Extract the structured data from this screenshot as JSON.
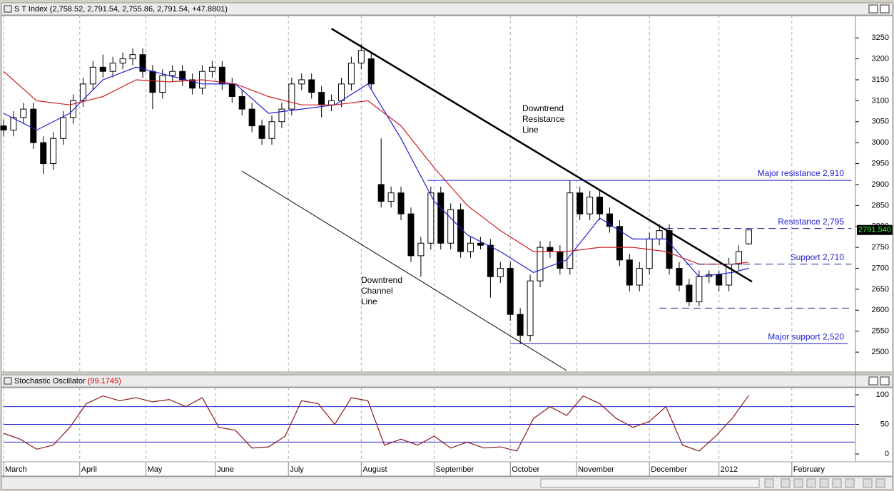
{
  "chart_data": [
    {
      "type": "candlestick",
      "title": "S T Index (2,758.52, 2,791.54, 2,755.86, 2,791.54, +47.8801)",
      "x": [
        0,
        3,
        6,
        9,
        12,
        15,
        18,
        21,
        24,
        27,
        30,
        33,
        36,
        39,
        42,
        45,
        48,
        51,
        54,
        57,
        60,
        63,
        66,
        69,
        72,
        75,
        78,
        81,
        84,
        87,
        90,
        93,
        96,
        99,
        102,
        105,
        108,
        111,
        114,
        117,
        120,
        123,
        126,
        129,
        132,
        135,
        138,
        141,
        144,
        147,
        150,
        153,
        156,
        159,
        162,
        165,
        168,
        171,
        174,
        177,
        180,
        183,
        186,
        189,
        192,
        195,
        198,
        201,
        204,
        207,
        210,
        213,
        216,
        219,
        222,
        225
      ],
      "open": [
        3040,
        3030,
        3060,
        3080,
        3000,
        2950,
        3010,
        3060,
        3100,
        3140,
        3180,
        3170,
        3190,
        3200,
        3210,
        3170,
        3120,
        3160,
        3170,
        3150,
        3130,
        3170,
        3180,
        3140,
        3110,
        3080,
        3040,
        3010,
        3050,
        3080,
        3140,
        3150,
        3120,
        3090,
        3100,
        3140,
        3190,
        3200,
        2900,
        2860,
        2880,
        2830,
        2730,
        2760,
        2880,
        2760,
        2840,
        2740,
        2760,
        2755,
        2680,
        2700,
        2590,
        2540,
        2670,
        2750,
        2740,
        2700,
        2880,
        2830,
        2870,
        2830,
        2800,
        2720,
        2660,
        2700,
        2770,
        2790,
        2700,
        2660,
        2620,
        2680,
        2685,
        2660,
        2710,
        2758.52
      ],
      "high": [
        3055,
        3075,
        3095,
        3095,
        3015,
        3025,
        3075,
        3115,
        3155,
        3195,
        3210,
        3205,
        3215,
        3225,
        3225,
        3185,
        3175,
        3185,
        3185,
        3165,
        3185,
        3195,
        3195,
        3155,
        3125,
        3095,
        3055,
        3065,
        3095,
        3155,
        3165,
        3165,
        3135,
        3115,
        3155,
        3205,
        3235,
        3215,
        3010,
        2895,
        2895,
        2845,
        2775,
        2895,
        2895,
        2855,
        2855,
        2775,
        2775,
        2770,
        2715,
        2715,
        2605,
        2685,
        2765,
        2765,
        2755,
        2910,
        2895,
        2885,
        2885,
        2845,
        2815,
        2735,
        2715,
        2785,
        2805,
        2805,
        2715,
        2675,
        2695,
        2695,
        2695,
        2725,
        2755,
        2791.54
      ],
      "low": [
        3015,
        3015,
        3045,
        2985,
        2925,
        2935,
        2995,
        3045,
        3085,
        3125,
        3155,
        3155,
        3175,
        3185,
        3155,
        3080,
        3105,
        3145,
        3135,
        3115,
        3115,
        3155,
        3125,
        3095,
        3065,
        3025,
        2995,
        2995,
        3035,
        3065,
        3125,
        3105,
        3060,
        3075,
        3085,
        3125,
        3175,
        3125,
        2845,
        2845,
        2815,
        2715,
        2680,
        2745,
        2745,
        2745,
        2725,
        2725,
        2745,
        2630,
        2665,
        2575,
        2520,
        2525,
        2655,
        2725,
        2685,
        2685,
        2815,
        2815,
        2815,
        2785,
        2705,
        2645,
        2645,
        2685,
        2755,
        2685,
        2645,
        2610,
        2610,
        2665,
        2645,
        2645,
        2695,
        2755.86
      ],
      "close": [
        3030,
        3060,
        3080,
        3000,
        2950,
        3010,
        3060,
        3100,
        3140,
        3180,
        3170,
        3190,
        3200,
        3210,
        3170,
        3120,
        3160,
        3170,
        3150,
        3130,
        3170,
        3180,
        3140,
        3110,
        3080,
        3040,
        3010,
        3050,
        3080,
        3140,
        3150,
        3120,
        3090,
        3100,
        3140,
        3190,
        3220,
        3140,
        2860,
        2880,
        2830,
        2730,
        2760,
        2880,
        2760,
        2840,
        2740,
        2760,
        2755,
        2680,
        2700,
        2590,
        2540,
        2670,
        2750,
        2740,
        2700,
        2880,
        2830,
        2870,
        2830,
        2800,
        2720,
        2660,
        2700,
        2770,
        2790,
        2700,
        2660,
        2620,
        2680,
        2685,
        2660,
        2710,
        2740,
        2791.54
      ],
      "series": [
        {
          "color": "#1f1fd0",
          "x": [
            0,
            10,
            20,
            30,
            40,
            50,
            60,
            70,
            80,
            90,
            100,
            110,
            120,
            130,
            140,
            150,
            160,
            170,
            180,
            190,
            200,
            210,
            220,
            225
          ],
          "values": [
            3070,
            3030,
            3070,
            3150,
            3180,
            3160,
            3140,
            3140,
            3070,
            3080,
            3090,
            3140,
            3010,
            2860,
            2780,
            2740,
            2690,
            2720,
            2820,
            2770,
            2770,
            2680,
            2690,
            2700
          ]
        },
        {
          "color": "#d01f1f",
          "x": [
            0,
            10,
            20,
            30,
            40,
            50,
            60,
            70,
            80,
            90,
            100,
            110,
            120,
            130,
            140,
            150,
            160,
            170,
            180,
            190,
            200,
            210,
            220,
            225
          ],
          "values": [
            3170,
            3100,
            3090,
            3110,
            3150,
            3145,
            3150,
            3140,
            3110,
            3090,
            3090,
            3100,
            3040,
            2940,
            2850,
            2790,
            2740,
            2740,
            2750,
            2750,
            2740,
            2710,
            2710,
            2715
          ]
        }
      ],
      "trendlines": [
        {
          "x": [
            99,
            226
          ],
          "values": [
            3272,
            2668
          ],
          "width": 2.5
        },
        {
          "x": [
            72,
            170
          ],
          "values": [
            2932,
            2456
          ],
          "width": 1
        }
      ],
      "levels": [
        {
          "label": "Major resistance 2,910",
          "value": 2910,
          "x": [
            128,
            256
          ],
          "dashed": false
        },
        {
          "label": "Resistance 2,795",
          "value": 2795,
          "x": [
            200,
            256
          ],
          "dashed": true
        },
        {
          "label": "Support 2,710",
          "value": 2710,
          "x": [
            206,
            256
          ],
          "dashed": true
        },
        {
          "value": 2605,
          "x": [
            198,
            256
          ],
          "dashed": true
        },
        {
          "label": "Major support 2,520",
          "value": 2520,
          "x": [
            153,
            255
          ],
          "dashed": false
        }
      ],
      "annotations": [
        [
          "Downtrend",
          "Resistance",
          "Line"
        ],
        [
          "Downtrend",
          "Channel",
          "Line"
        ]
      ],
      "last_price": {
        "value": 2791.54,
        "label": "2791.540"
      },
      "xlim": [
        0,
        257
      ],
      "xticks": [
        {
          "value": 0,
          "label": "March"
        },
        {
          "value": 23,
          "label": "April"
        },
        {
          "value": 43,
          "label": "May"
        },
        {
          "value": 64,
          "label": "June"
        },
        {
          "value": 86,
          "label": "July"
        },
        {
          "value": 108,
          "label": "August"
        },
        {
          "value": 130,
          "label": "September"
        },
        {
          "value": 153,
          "label": "October"
        },
        {
          "value": 173,
          "label": "November"
        },
        {
          "value": 195,
          "label": "December"
        },
        {
          "value": 216,
          "label": "2012"
        },
        {
          "value": 238,
          "label": "February"
        }
      ],
      "ylim": [
        2456,
        3303
      ],
      "yticks": [
        2500,
        2550,
        2600,
        2650,
        2700,
        2750,
        2800,
        2850,
        2900,
        2950,
        3000,
        3050,
        3100,
        3150,
        3200,
        3250
      ]
    },
    {
      "type": "line",
      "title": "Stochastic Oscillator",
      "current": "(99.1745)",
      "series": [
        {
          "color": "#8b1a1a",
          "x": [
            0,
            5,
            10,
            15,
            20,
            25,
            30,
            35,
            40,
            45,
            50,
            55,
            60,
            65,
            70,
            75,
            80,
            85,
            90,
            95,
            100,
            105,
            110,
            115,
            120,
            125,
            130,
            135,
            140,
            145,
            150,
            155,
            160,
            165,
            170,
            175,
            180,
            185,
            190,
            195,
            200,
            205,
            210,
            215,
            220,
            225
          ],
          "values": [
            35,
            25,
            8,
            15,
            45,
            85,
            98,
            90,
            95,
            88,
            92,
            80,
            95,
            45,
            40,
            10,
            12,
            30,
            90,
            85,
            50,
            95,
            90,
            15,
            25,
            15,
            30,
            10,
            20,
            10,
            12,
            5,
            60,
            80,
            65,
            98,
            85,
            60,
            45,
            55,
            80,
            15,
            5,
            30,
            60,
            99.1745
          ]
        }
      ],
      "levels": [
        80,
        50,
        20
      ],
      "xlim": [
        0,
        257
      ],
      "ylim": [
        -9.6,
        110.8
      ],
      "yticks": [
        0,
        50,
        100
      ]
    }
  ]
}
